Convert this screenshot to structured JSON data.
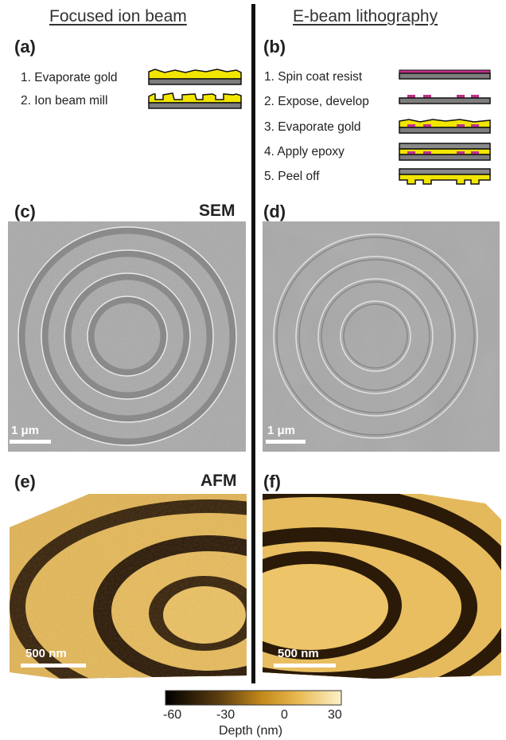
{
  "columns": {
    "left_title": "Focused ion beam",
    "right_title": "E-beam lithography"
  },
  "panels": {
    "a": "(a)",
    "b": "(b)",
    "c": "(c)",
    "d": "(d)",
    "e": "(e)",
    "f": "(f)"
  },
  "tags": {
    "sem": "SEM",
    "afm": "AFM"
  },
  "fib_steps": [
    "1. Evaporate gold",
    "2. Ion beam mill"
  ],
  "ebl_steps": [
    "1. Spin coat resist",
    "2. Expose, develop",
    "3. Evaporate gold",
    "4. Apply epoxy",
    "5. Peel off"
  ],
  "scale_bars": {
    "c": "1 μm",
    "d": "1 μm",
    "e": "500 nm",
    "f": "500 nm"
  },
  "colorbar": {
    "ticks": [
      "-60",
      "-30",
      "0",
      "30"
    ],
    "label": "Depth (nm)"
  },
  "colors": {
    "gold": "#f2e600",
    "substrate": "#7d7d7d",
    "resist": "#c0308a",
    "epoxy": "#8a8a8a",
    "sem_bg": "#a8a8a8",
    "afm_light": "#e3b85a",
    "afm_dark": "#2a1a08"
  }
}
